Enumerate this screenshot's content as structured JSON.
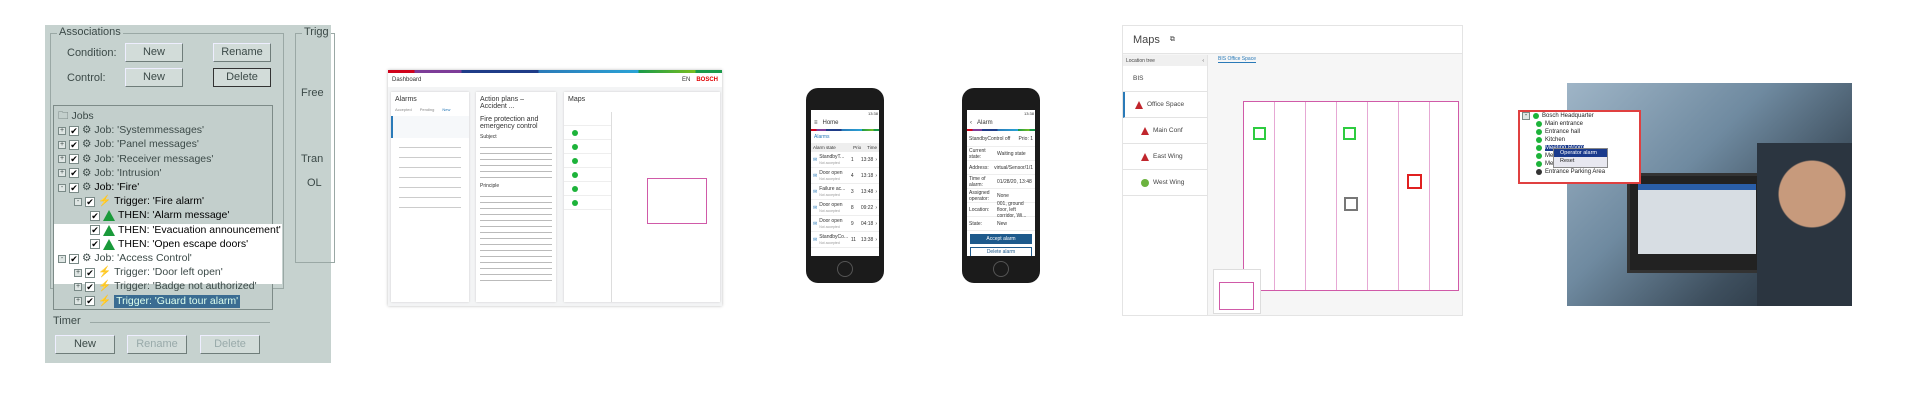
{
  "legacy": {
    "associations_title": "Associations",
    "condition_label": "Condition:",
    "control_label": "Control:",
    "new_label": "New",
    "rename_label": "Rename",
    "delete_label": "Delete",
    "trigger_group_partial": "Trigg",
    "free_partial": "Free",
    "trans_partial": "Tran",
    "ol_partial": "OL",
    "tree": [
      {
        "label": "Jobs",
        "level": 0
      },
      {
        "label": "Job: 'Systemmessages'",
        "level": 0
      },
      {
        "label": "Job: 'Panel messages'",
        "level": 0
      },
      {
        "label": "Job: 'Receiver messages'",
        "level": 0
      },
      {
        "label": "Job: 'Intrusion'",
        "level": 0
      },
      {
        "label": "Job: 'Fire'",
        "level": 0
      },
      {
        "label": "Trigger: 'Fire alarm'",
        "level": 1
      },
      {
        "label": "THEN: 'Alarm message'",
        "level": 2
      },
      {
        "label": "THEN: 'Evacuation announcement'",
        "level": 2
      },
      {
        "label": "THEN: 'Open escape doors'",
        "level": 2
      },
      {
        "label": "Job: 'Access Control'",
        "level": 0
      },
      {
        "label": "Trigger: 'Door left open'",
        "level": 1
      },
      {
        "label": "Trigger: 'Badge not authorized'",
        "level": 1
      },
      {
        "label": "Trigger: 'Guard tour alarm'",
        "level": 1,
        "selected": true
      }
    ],
    "timer_title": "Timer"
  },
  "web": {
    "breadcrumb": "Dashboard",
    "lang": "EN",
    "brand": "BOSCH",
    "alarms_title": "Alarms",
    "alarm_tabs": [
      "Accepted",
      "Pending",
      "New"
    ],
    "actions_title": "Action plans – Accident ...",
    "plan_title": "Fire protection and emergency control",
    "subject": "Subject",
    "principle": "Principle",
    "maps_title": "Maps",
    "brand_color": "#e00000"
  },
  "phone1": {
    "time": "13:38",
    "title": "Home",
    "tab": "Alarms",
    "cols": [
      "Alarm state",
      "Prio",
      "Time"
    ],
    "rows": [
      {
        "name": "StandbyT...",
        "sub": "Not accepted",
        "prio": "1",
        "time": "13:38"
      },
      {
        "name": "Door open",
        "sub": "Not accepted",
        "prio": "4",
        "time": "13:18"
      },
      {
        "name": "Failure ac...",
        "sub": "Not accepted",
        "prio": "3",
        "time": "13:48"
      },
      {
        "name": "Door open",
        "sub": "Not accepted",
        "prio": "8",
        "time": "09:22"
      },
      {
        "name": "Door open",
        "sub": "Not accepted",
        "prio": "9",
        "time": "04:18"
      },
      {
        "name": "StandbyCo...",
        "sub": "Not accepted",
        "prio": "11",
        "time": "13:38"
      }
    ]
  },
  "phone2": {
    "time": "13:38",
    "title": "Alarm",
    "header": "StandbyControl off",
    "prio": "Prio: 1",
    "fields": [
      {
        "k": "Current state:",
        "v": "Waiting state"
      },
      {
        "k": "Address:",
        "v": "virtual/Sensor/1/1"
      },
      {
        "k": "Time of alarm:",
        "v": "01/28/20, 13:48"
      },
      {
        "k": "Assigned operator:",
        "v": "None"
      },
      {
        "k": "Location:",
        "v": "001, ground floor, left corridor, Wi..."
      },
      {
        "k": "State:",
        "v": "New"
      }
    ],
    "accept": "Accept alarm",
    "delete": "Delete alarm"
  },
  "maps": {
    "title": "Maps",
    "tree_header": "Location tree",
    "tab": "BIS Office Space",
    "root": "BIS",
    "items": [
      {
        "label": "Office Space",
        "status": "alarm"
      },
      {
        "label": "Main Conf",
        "status": "alarm"
      },
      {
        "label": "East Wing",
        "status": "alarm"
      },
      {
        "label": "West Wing",
        "status": "ok"
      }
    ]
  },
  "photo": {
    "root": "Bosch Headquarter",
    "items": [
      "Main entrance",
      "Entrance hall",
      "Kitchen",
      "Meeting Room",
      "Meeting",
      "Meeting",
      "Entrance Parking Area"
    ],
    "menu": [
      "Operator alarm",
      "Reset"
    ]
  }
}
